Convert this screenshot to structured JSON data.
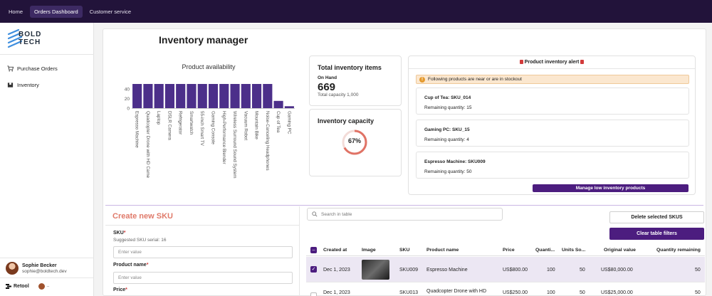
{
  "topnav": {
    "items": [
      "Home",
      "Orders Dashboard",
      "Customer service"
    ],
    "active": "Orders Dashboard"
  },
  "logo": {
    "line1": "BOLD",
    "line2": "TECH"
  },
  "sidebar": {
    "items": [
      {
        "label": "Purchase Orders",
        "icon": "cart-icon"
      },
      {
        "label": "Inventory",
        "icon": "box-icon"
      }
    ]
  },
  "user": {
    "name": "Sophie Becker",
    "email": "sophie@boldtech.dev"
  },
  "footer": {
    "brand": "Retool",
    "dash": "–"
  },
  "page": {
    "title": "Inventory manager"
  },
  "chart_data": {
    "type": "bar",
    "title": "Product availability",
    "categories": [
      "Espresso Machine",
      "Quadcopter Drone with HD Came",
      "Laptop",
      "DSLR Camera",
      "Refrigerator",
      "Smartwatch",
      "55-inch Smart TV",
      "Gaming Console",
      "High-Performance Blender",
      "Wireless Surround Sound System",
      "Vacuum Robot",
      "Mountain Bike",
      "Noise-Canceling Headphones",
      "Cup of Tea",
      "Gaming PC"
    ],
    "values": [
      50,
      50,
      50,
      50,
      50,
      50,
      50,
      50,
      50,
      50,
      50,
      50,
      50,
      15,
      4
    ],
    "yticks": [
      "0",
      "20",
      "40"
    ],
    "ylim": [
      0,
      50
    ],
    "color": "#4c2f8a"
  },
  "total": {
    "title": "Total inventory items",
    "onhand_label": "On Hand",
    "onhand_value": "669",
    "capacity_text": "Total capacity 1,000"
  },
  "capacity": {
    "title": "Inventory capacity",
    "percent_text": "67%",
    "percent": 67
  },
  "alert": {
    "title": "Product inventory alert",
    "warning": "Following products are near or are in stockout",
    "items": [
      {
        "name": "Cup of Tea: SKU_014",
        "qty": "Remaining quantity: 15"
      },
      {
        "name": "Gaming PC: SKU_15",
        "qty": "Remaining quantity: 4"
      },
      {
        "name": "Espresso Machine: SKU009",
        "qty": "Remaining quantity: 50"
      }
    ],
    "button": "Manage low inventory products"
  },
  "form": {
    "title": "Create new SKU",
    "sku_label": "SKU",
    "sku_hint": "Suggested SKU serial: 16",
    "sku_placeholder": "Enter value",
    "name_label": "Product name",
    "name_placeholder": "Enter value",
    "price_label": "Price",
    "req": "*"
  },
  "table": {
    "search_placeholder": "Search in table",
    "delete_button": "Delete selected SKUS",
    "clear_button": "Clear table filters",
    "columns": [
      "Created at",
      "Image",
      "SKU",
      "Product name",
      "Price",
      "Quanti...",
      "Units So...",
      "Original value",
      "Quantity remaining"
    ],
    "rows": [
      {
        "created": "Dec 1, 2023",
        "sku": "SKU009",
        "name": "Espresso Machine",
        "price": "US$800.00",
        "qty": "100",
        "sold": "50",
        "orig": "US$80,000.00",
        "remaining": "50"
      },
      {
        "created": "Dec 1, 2023",
        "sku": "SKU013",
        "name": "Quadcopter Drone with HD",
        "price": "US$250.00",
        "qty": "100",
        "sold": "50",
        "orig": "US$25,000.00",
        "remaining": "50"
      }
    ]
  }
}
